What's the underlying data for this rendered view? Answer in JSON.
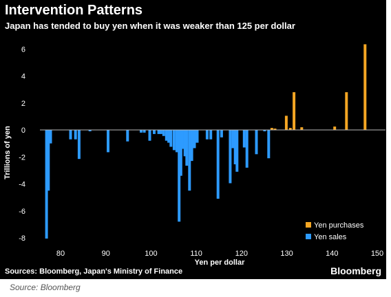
{
  "title": "Intervention Patterns",
  "subtitle": "Japan has tended to buy yen when it was weaker than 125 per dollar",
  "sources": "Sources: Bloomberg, Japan's Ministry of Finance",
  "brand": "Bloomberg",
  "caption": "Source: Bloomberg",
  "chart_data": {
    "type": "bar",
    "title": "Intervention Patterns",
    "subtitle": "Japan has tended to buy yen when it was weaker than 125 per dollar",
    "xlabel": "Yen per dollar",
    "ylabel": "Trillions of yen",
    "xlim": [
      76,
      150
    ],
    "ylim": [
      -8.5,
      7
    ],
    "x_ticks": [
      "80",
      "90",
      "100",
      "110",
      "120",
      "130",
      "140",
      "150"
    ],
    "y_ticks": [
      "6",
      "4",
      "2",
      "0",
      "-2",
      "-4",
      "-6",
      "-8"
    ],
    "grid": false,
    "legend_position": "bottom-right",
    "colors": {
      "yen_purchases": "#f5a623",
      "yen_sales": "#2d9bff",
      "zero_line": "#bbbbbb"
    },
    "series": [
      {
        "name": "Yen purchases",
        "points": [
          {
            "x": 126.7,
            "y": 0.15
          },
          {
            "x": 127.4,
            "y": 0.1
          },
          {
            "x": 129.9,
            "y": 1.05
          },
          {
            "x": 130.8,
            "y": 0.15
          },
          {
            "x": 131.6,
            "y": 2.8
          },
          {
            "x": 133.3,
            "y": 0.2
          },
          {
            "x": 140.6,
            "y": 0.25
          },
          {
            "x": 143.2,
            "y": 2.8
          },
          {
            "x": 147.3,
            "y": 6.35
          }
        ]
      },
      {
        "name": "Yen sales",
        "points": [
          {
            "x": 76.9,
            "y": -8.05
          },
          {
            "x": 77.3,
            "y": -4.5
          },
          {
            "x": 77.8,
            "y": -1.0
          },
          {
            "x": 82.2,
            "y": -0.7
          },
          {
            "x": 83.3,
            "y": -0.7
          },
          {
            "x": 84.1,
            "y": -2.15
          },
          {
            "x": 86.5,
            "y": -0.1
          },
          {
            "x": 90.5,
            "y": -1.65
          },
          {
            "x": 94.8,
            "y": -0.85
          },
          {
            "x": 97.8,
            "y": -0.2
          },
          {
            "x": 98.5,
            "y": -0.2
          },
          {
            "x": 99.7,
            "y": -0.8
          },
          {
            "x": 100.7,
            "y": -0.3
          },
          {
            "x": 101.7,
            "y": -0.3
          },
          {
            "x": 102.2,
            "y": -0.3
          },
          {
            "x": 102.8,
            "y": -0.45
          },
          {
            "x": 103.4,
            "y": -0.8
          },
          {
            "x": 103.9,
            "y": -0.95
          },
          {
            "x": 104.4,
            "y": -1.25
          },
          {
            "x": 105.1,
            "y": -1.5
          },
          {
            "x": 105.7,
            "y": -1.65
          },
          {
            "x": 106.2,
            "y": -6.8
          },
          {
            "x": 106.6,
            "y": -3.4
          },
          {
            "x": 107.1,
            "y": -1.4
          },
          {
            "x": 107.5,
            "y": -1.95
          },
          {
            "x": 107.9,
            "y": -2.65
          },
          {
            "x": 108.5,
            "y": -4.5
          },
          {
            "x": 109.0,
            "y": -2.3
          },
          {
            "x": 109.6,
            "y": -1.35
          },
          {
            "x": 110.2,
            "y": -0.95
          },
          {
            "x": 112.4,
            "y": -0.7
          },
          {
            "x": 113.2,
            "y": -0.7
          },
          {
            "x": 114.8,
            "y": -5.1
          },
          {
            "x": 115.6,
            "y": -0.55
          },
          {
            "x": 117.5,
            "y": -3.95
          },
          {
            "x": 118.1,
            "y": -1.35
          },
          {
            "x": 118.6,
            "y": -2.55
          },
          {
            "x": 119.0,
            "y": -3.1
          },
          {
            "x": 120.6,
            "y": -1.3
          },
          {
            "x": 121.2,
            "y": -2.8
          },
          {
            "x": 123.3,
            "y": -1.8
          },
          {
            "x": 125.1,
            "y": -0.1
          },
          {
            "x": 126.0,
            "y": -2.1
          }
        ]
      }
    ]
  }
}
